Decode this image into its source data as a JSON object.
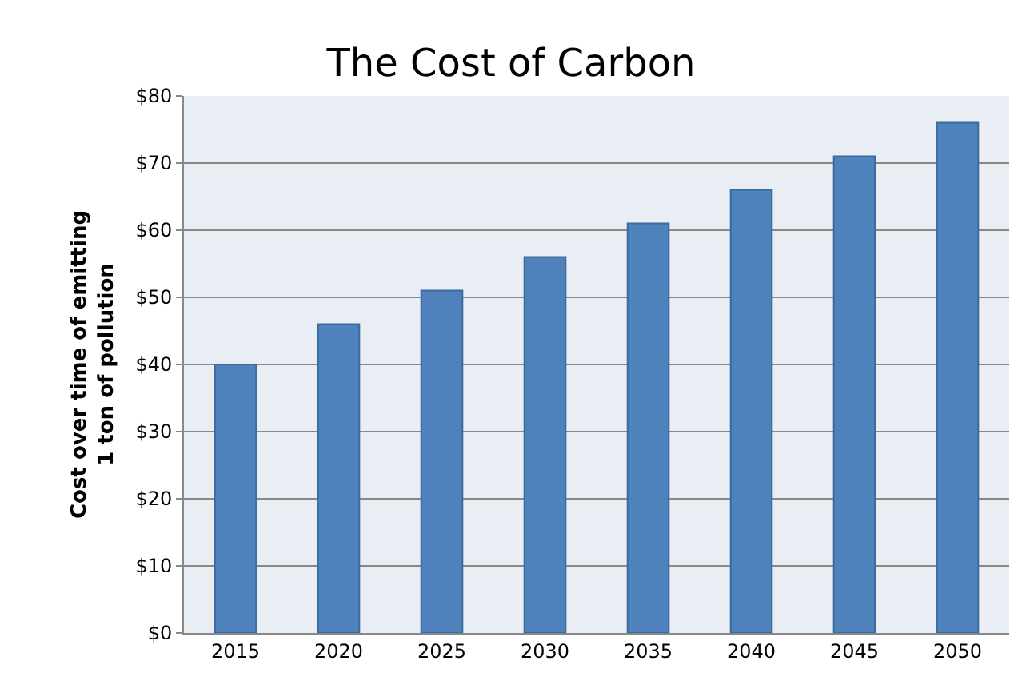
{
  "chart_data": {
    "type": "bar",
    "title": "The Cost of Carbon",
    "ylabel": "Cost over time of emitting\n1 ton of pollution",
    "categories": [
      "2015",
      "2020",
      "2025",
      "2030",
      "2035",
      "2040",
      "2045",
      "2050"
    ],
    "values": [
      40,
      46,
      51,
      56,
      61,
      66,
      71,
      76
    ],
    "color": "#4f81bd",
    "ylim": [
      0,
      80
    ],
    "yticks": [
      {
        "value": 0,
        "label": "$0"
      },
      {
        "value": 10,
        "label": "$10"
      },
      {
        "value": 20,
        "label": "$20"
      },
      {
        "value": 30,
        "label": "$30"
      },
      {
        "value": 40,
        "label": "$40"
      },
      {
        "value": 50,
        "label": "$50"
      },
      {
        "value": 60,
        "label": "$60"
      },
      {
        "value": 70,
        "label": "$70"
      },
      {
        "value": 80,
        "label": "$80"
      }
    ],
    "grid": "y"
  }
}
